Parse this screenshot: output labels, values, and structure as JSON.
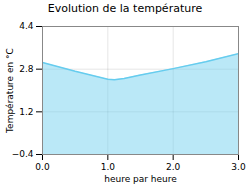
{
  "chart_data": {
    "type": "area",
    "title": "Evolution de la température",
    "xlabel": "heure par heure",
    "ylabel": "Température en °C",
    "x": [
      0,
      0.5,
      1.0,
      1.1,
      1.25,
      1.5,
      2.0,
      2.5,
      3.0
    ],
    "values": [
      3.05,
      2.72,
      2.42,
      2.4,
      2.45,
      2.58,
      2.82,
      3.08,
      3.38
    ],
    "xlim": [
      0,
      3
    ],
    "ylim": [
      -0.4,
      4.4
    ],
    "xticks": [
      0,
      1,
      2,
      3
    ],
    "yticks": [
      -0.4,
      1.2,
      2.8,
      4.4
    ],
    "color": "#66ccee",
    "grid": true
  }
}
